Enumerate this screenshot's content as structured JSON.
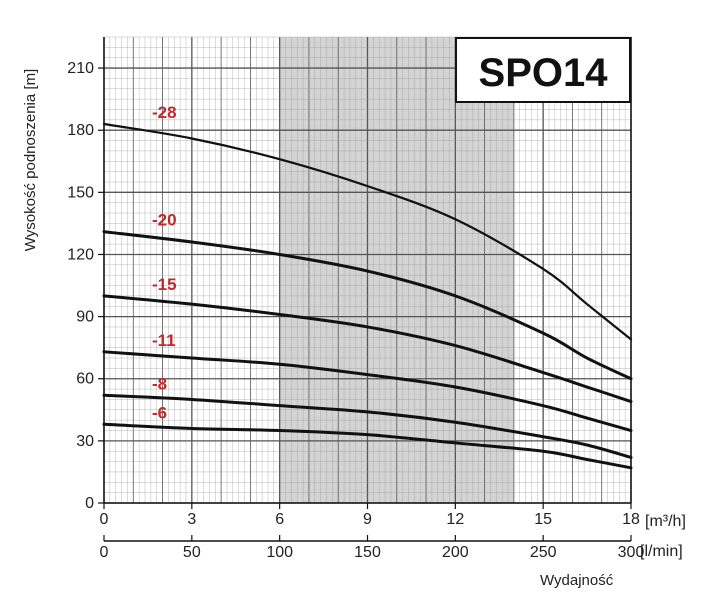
{
  "chart_data": {
    "type": "line",
    "title": "SPO14",
    "ylabel": "Wysokość podnoszenia [m]",
    "xlabel": "Wydajność",
    "x_unit_primary": "[m³/h]",
    "x_unit_secondary": "[l/min]",
    "xlim": [
      0,
      18
    ],
    "ylim": [
      0,
      225
    ],
    "y_ticks": [
      "0",
      "30",
      "60",
      "90",
      "120",
      "150",
      "180",
      "210"
    ],
    "x_ticks_primary": [
      "0",
      "3",
      "6",
      "9",
      "12",
      "15",
      "18"
    ],
    "x_ticks_secondary": [
      "0",
      "50",
      "100",
      "150",
      "200",
      "250",
      "300"
    ],
    "grid": true,
    "shaded_range_m3h": [
      6,
      14
    ],
    "colors": {
      "curve": "#111111",
      "label": "#c0282d",
      "shade": "#d4d4d4",
      "grid": "#8a8a8a"
    },
    "series": [
      {
        "name": "-28",
        "x": [
          0,
          3,
          6,
          9,
          12,
          15,
          16.5,
          18
        ],
        "y": [
          183,
          176,
          166,
          153,
          137,
          113,
          96,
          79
        ]
      },
      {
        "name": "-20",
        "x": [
          0,
          3,
          6,
          9,
          12,
          15,
          16.5,
          18
        ],
        "y": [
          131,
          126,
          120,
          112,
          100,
          82,
          70,
          60
        ]
      },
      {
        "name": "-15",
        "x": [
          0,
          3,
          6,
          9,
          12,
          15,
          16.5,
          18
        ],
        "y": [
          100,
          96,
          91,
          85,
          76,
          63,
          56,
          49
        ]
      },
      {
        "name": "-11",
        "x": [
          0,
          3,
          6,
          9,
          12,
          15,
          16.5,
          18
        ],
        "y": [
          73,
          70,
          67,
          62,
          56,
          47,
          41,
          35
        ]
      },
      {
        "name": "-8",
        "x": [
          0,
          3,
          6,
          9,
          12,
          15,
          16.5,
          18
        ],
        "y": [
          52,
          50,
          47,
          44,
          39,
          32,
          28,
          22
        ]
      },
      {
        "name": "-6",
        "x": [
          0,
          3,
          6,
          9,
          12,
          15,
          16.5,
          18
        ],
        "y": [
          38,
          36,
          35,
          33,
          29,
          25,
          21,
          17
        ]
      }
    ]
  }
}
